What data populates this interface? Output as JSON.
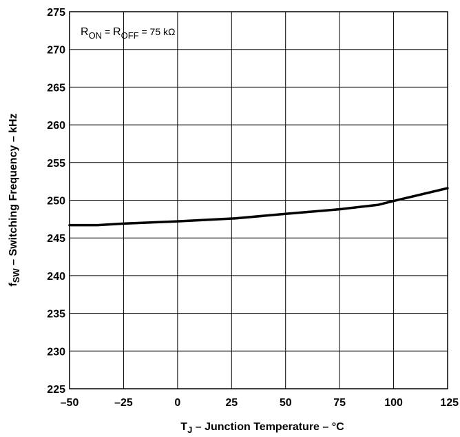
{
  "chart_data": {
    "type": "line",
    "x": [
      -50,
      -37,
      -25,
      0,
      27,
      50,
      75,
      93,
      100,
      125
    ],
    "y": [
      246.7,
      246.7,
      246.9,
      247.2,
      247.6,
      248.2,
      248.8,
      249.4,
      249.9,
      251.6
    ],
    "xlim": [
      -50,
      125
    ],
    "ylim": [
      225,
      275
    ],
    "x_ticks": [
      -50,
      -25,
      0,
      25,
      50,
      75,
      100,
      125
    ],
    "y_ticks": [
      225,
      230,
      235,
      240,
      245,
      250,
      255,
      260,
      265,
      270,
      275
    ],
    "x_tick_labels": [
      "–50",
      "–25",
      "0",
      "25",
      "50",
      "75",
      "100",
      "125"
    ],
    "y_tick_labels": [
      "225",
      "230",
      "235",
      "240",
      "245",
      "250",
      "255",
      "260",
      "265",
      "270",
      "275"
    ],
    "xlabel": {
      "symbol": "T",
      "subscript": "J",
      "text": "  –  Junction Temperature – °C"
    },
    "ylabel": {
      "symbol": "f",
      "subscript": "SW",
      "text": " – Switching Frequency – kHz"
    },
    "annotation": {
      "r1": "R",
      "r1_sub": "ON",
      "eq1": " = ",
      "r2": "R",
      "r2_sub": "OFF",
      "value": " = 75 kΩ"
    },
    "grid": true,
    "line_color": "#000000"
  }
}
